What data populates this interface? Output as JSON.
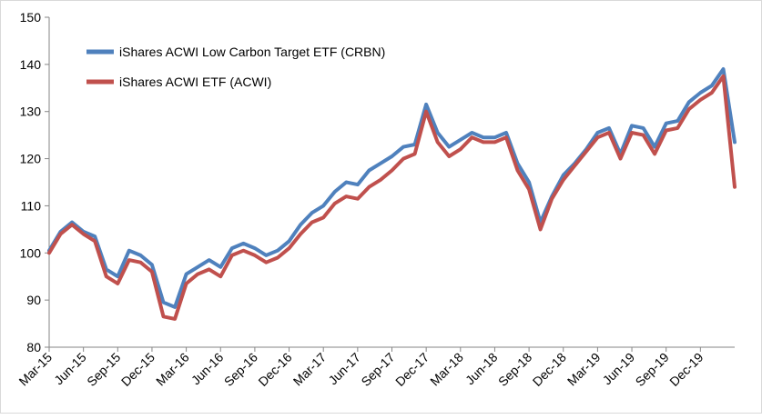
{
  "chart_data": {
    "type": "line",
    "title": "",
    "xlabel": "",
    "ylabel": "",
    "ylim": [
      80,
      150
    ],
    "y_ticks": [
      80,
      90,
      100,
      110,
      120,
      130,
      140,
      150
    ],
    "x_tick_labels": [
      "Mar-15",
      "Jun-15",
      "Sep-15",
      "Dec-15",
      "Mar-16",
      "Jun-16",
      "Sep-16",
      "Dec-16",
      "Mar-17",
      "Jun-17",
      "Sep-17",
      "Dec-17",
      "Mar-18",
      "Jun-18",
      "Sep-18",
      "Dec-18",
      "Mar-19",
      "Jun-19",
      "Sep-19",
      "Dec-19"
    ],
    "grid": false,
    "legend_position": "top-left",
    "x": [
      "2015-03",
      "2015-04",
      "2015-05",
      "2015-06",
      "2015-07",
      "2015-08",
      "2015-09",
      "2015-10",
      "2015-11",
      "2015-12",
      "2016-01",
      "2016-02",
      "2016-03",
      "2016-04",
      "2016-05",
      "2016-06",
      "2016-07",
      "2016-08",
      "2016-09",
      "2016-10",
      "2016-11",
      "2016-12",
      "2017-01",
      "2017-02",
      "2017-03",
      "2017-04",
      "2017-05",
      "2017-06",
      "2017-07",
      "2017-08",
      "2017-09",
      "2017-10",
      "2017-11",
      "2017-12",
      "2018-01",
      "2018-02",
      "2018-03",
      "2018-04",
      "2018-05",
      "2018-06",
      "2018-07",
      "2018-08",
      "2018-09",
      "2018-10",
      "2018-11",
      "2018-12",
      "2019-01",
      "2019-02",
      "2019-03",
      "2019-04",
      "2019-05",
      "2019-06",
      "2019-07",
      "2019-08",
      "2019-09",
      "2019-10",
      "2019-11",
      "2019-12",
      "2020-01",
      "2020-02",
      "2020-03"
    ],
    "series": [
      {
        "name": "iShares ACWI Low Carbon Target ETF (CRBN)",
        "color": "#4f81bd",
        "values": [
          100.5,
          104.5,
          106.5,
          104.5,
          103.5,
          96.5,
          95.0,
          100.5,
          99.5,
          97.5,
          89.5,
          88.5,
          95.5,
          97.0,
          98.5,
          97.0,
          101.0,
          102.0,
          101.0,
          99.5,
          100.5,
          102.5,
          106.0,
          108.5,
          110.0,
          113.0,
          115.0,
          114.5,
          117.5,
          119.0,
          120.5,
          122.5,
          123.0,
          131.5,
          125.5,
          122.5,
          124.0,
          125.5,
          124.5,
          124.5,
          125.5,
          119.0,
          115.0,
          106.5,
          112.0,
          116.5,
          119.0,
          122.0,
          125.5,
          126.5,
          121.0,
          127.0,
          126.5,
          122.5,
          127.5,
          128.0,
          132.0,
          134.0,
          135.5,
          139.0,
          123.5
        ]
      },
      {
        "name": "iShares ACWI ETF (ACWI)",
        "color": "#c0504d",
        "values": [
          100.0,
          104.0,
          106.0,
          104.0,
          102.5,
          95.0,
          93.5,
          98.5,
          98.0,
          96.0,
          86.5,
          86.0,
          93.5,
          95.5,
          96.5,
          95.0,
          99.5,
          100.5,
          99.5,
          98.0,
          99.0,
          101.0,
          104.0,
          106.5,
          107.5,
          110.5,
          112.0,
          111.5,
          114.0,
          115.5,
          117.5,
          120.0,
          121.0,
          130.0,
          123.5,
          120.5,
          122.0,
          124.5,
          123.5,
          123.5,
          124.5,
          117.5,
          113.5,
          105.0,
          111.5,
          115.5,
          118.5,
          121.5,
          124.5,
          125.5,
          120.0,
          125.5,
          125.0,
          121.0,
          126.0,
          126.5,
          130.5,
          132.5,
          134.0,
          137.5,
          114.0
        ]
      }
    ]
  }
}
